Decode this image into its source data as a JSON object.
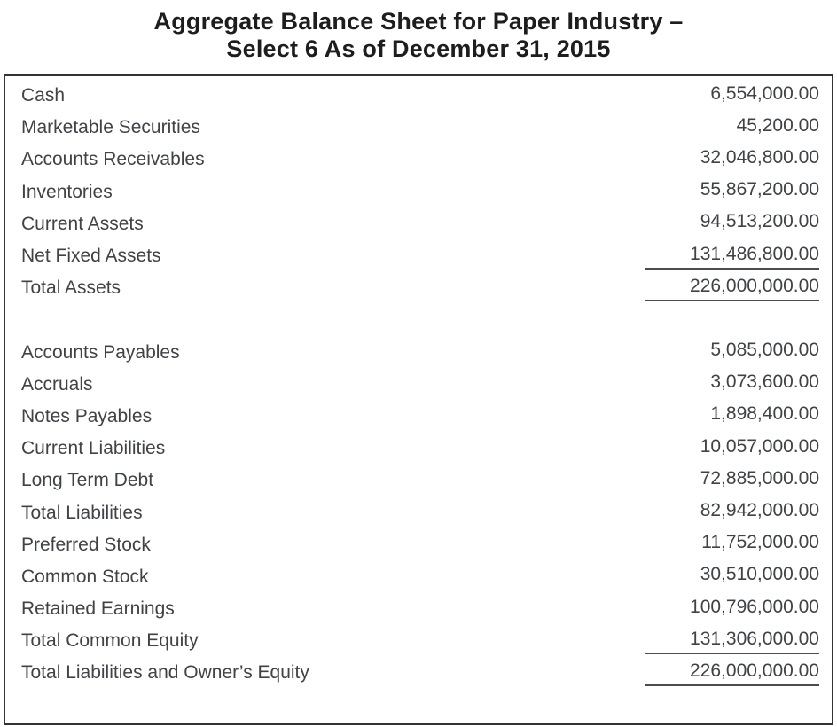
{
  "title": {
    "line1": "Aggregate Balance Sheet for Paper Industry –",
    "line2": "Select 6 As of December 31, 2015"
  },
  "table": {
    "rows": [
      {
        "label": "Cash",
        "value": "6,554,000.00",
        "total_underline": false
      },
      {
        "label": "Marketable Securities",
        "value": "45,200.00",
        "total_underline": false
      },
      {
        "label": "Accounts Receivables",
        "value": "32,046,800.00",
        "total_underline": false
      },
      {
        "label": "Inventories",
        "value": "55,867,200.00",
        "total_underline": false
      },
      {
        "label": "Current Assets",
        "value": "94,513,200.00",
        "total_underline": false
      },
      {
        "label": "Net Fixed Assets",
        "value": "131,486,800.00",
        "total_underline": true
      },
      {
        "label": "Total Assets",
        "value": "226,000,000.00",
        "total_underline": true
      },
      {
        "label": "",
        "value": "",
        "total_underline": false
      },
      {
        "label": "Accounts Payables",
        "value": "5,085,000.00",
        "total_underline": false
      },
      {
        "label": "Accruals",
        "value": "3,073,600.00",
        "total_underline": false
      },
      {
        "label": "Notes Payables",
        "value": "1,898,400.00",
        "total_underline": false
      },
      {
        "label": "Current Liabilities",
        "value": "10,057,000.00",
        "total_underline": false
      },
      {
        "label": "Long Term Debt",
        "value": "72,885,000.00",
        "total_underline": false
      },
      {
        "label": "Total Liabilities",
        "value": "82,942,000.00",
        "total_underline": false
      },
      {
        "label": "Preferred Stock",
        "value": "11,752,000.00",
        "total_underline": false
      },
      {
        "label": "Common Stock",
        "value": "30,510,000.00",
        "total_underline": false
      },
      {
        "label": "Retained Earnings",
        "value": "100,796,000.00",
        "total_underline": false
      },
      {
        "label": "Total Common Equity",
        "value": "131,306,000.00",
        "total_underline": true
      },
      {
        "label": "Total Liabilities and Owner’s Equity",
        "value": "226,000,000.00",
        "total_underline": true
      }
    ]
  }
}
